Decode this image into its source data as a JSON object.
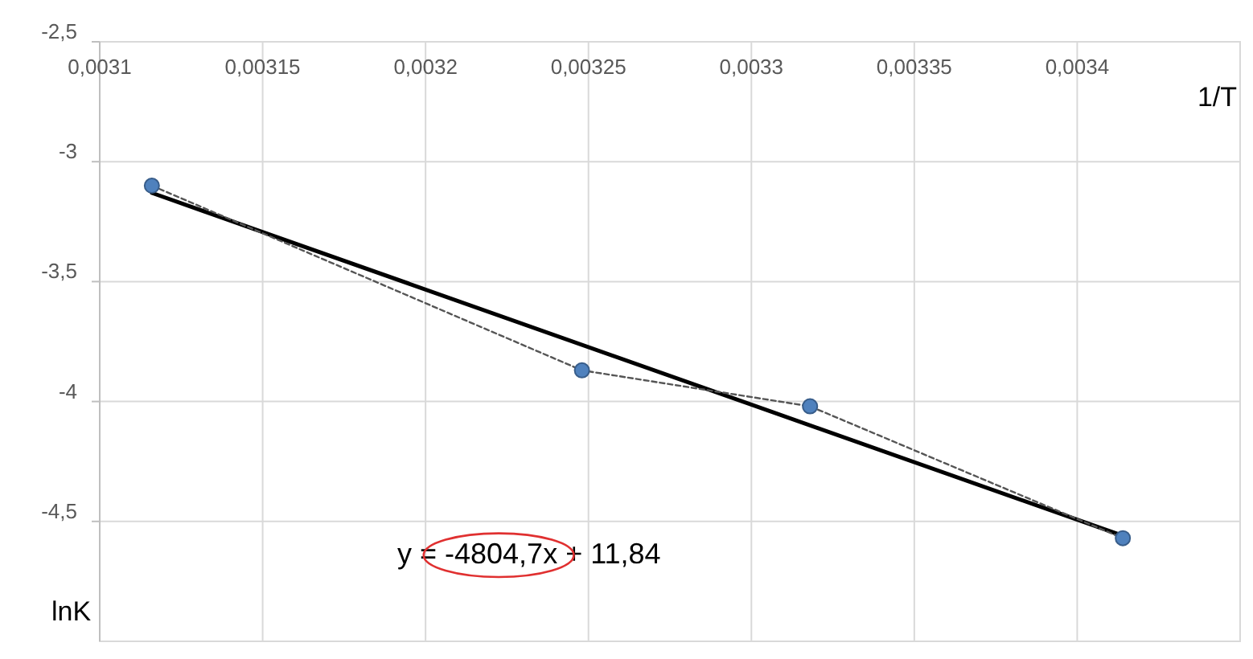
{
  "chart_data": {
    "type": "line",
    "xlabel": "1/T",
    "ylabel": "lnK",
    "xlim": [
      0.0031,
      0.00345
    ],
    "ylim": [
      -5,
      -2.5
    ],
    "xticks": [
      {
        "value": 0.0031,
        "label": "0,0031"
      },
      {
        "value": 0.00315,
        "label": "0,00315"
      },
      {
        "value": 0.0032,
        "label": "0,0032"
      },
      {
        "value": 0.00325,
        "label": "0,00325"
      },
      {
        "value": 0.0033,
        "label": "0,0033"
      },
      {
        "value": 0.00335,
        "label": "0,00335"
      },
      {
        "value": 0.0034,
        "label": "0,0034"
      }
    ],
    "yticks": [
      {
        "value": -2.5,
        "label": "-2,5"
      },
      -3,
      {
        "value": -3.5,
        "label": "-3,5"
      },
      -4,
      {
        "value": -4.5,
        "label": "-4,5"
      }
    ],
    "grid": true,
    "series": [
      {
        "color": "#4f81bd",
        "x": [
          0.003116,
          0.003248,
          0.003318,
          0.003414
        ],
        "values": [
          -3.1,
          -3.87,
          -4.02,
          -4.57
        ],
        "marker": "circle",
        "line_style": "dotted"
      },
      {
        "color": "#000000",
        "x": [
          0.003116,
          0.003414
        ],
        "values": [
          -3.13,
          -4.56
        ],
        "marker": "none",
        "line_style": "solid"
      }
    ],
    "annotations": [
      "y = -4804,7x + 11,84"
    ]
  }
}
